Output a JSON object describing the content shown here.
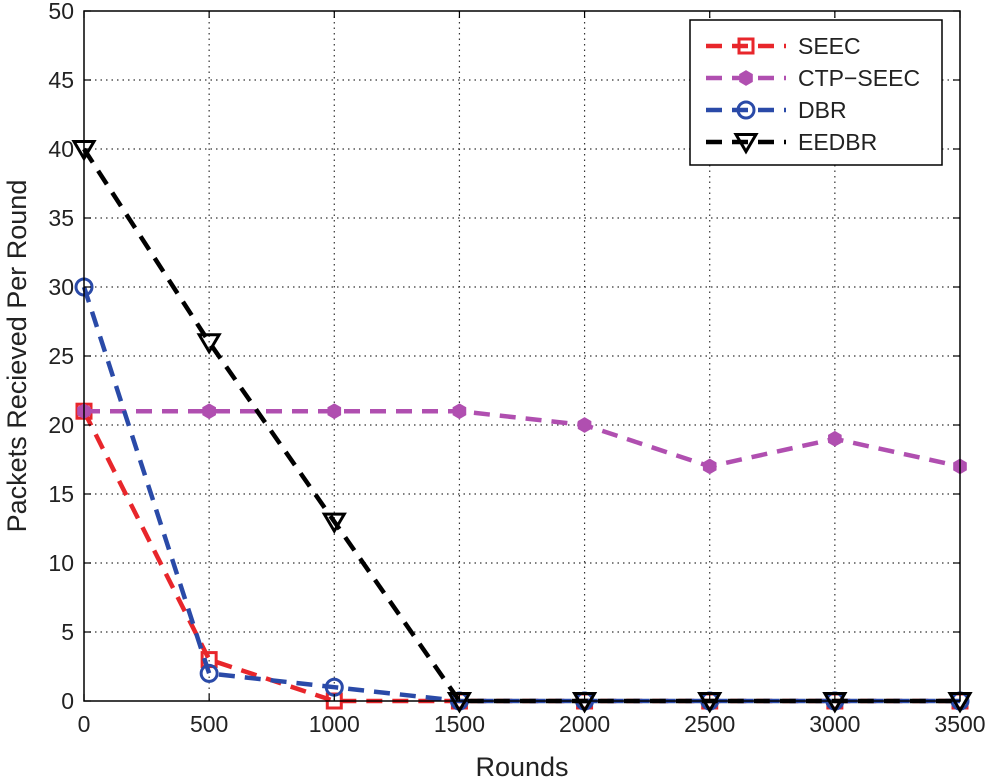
{
  "chart_data": {
    "type": "line",
    "xlabel": "Rounds",
    "ylabel": "Packets Recieved Per Round",
    "xlim": [
      0,
      3500
    ],
    "ylim": [
      0,
      50
    ],
    "xticks": [
      0,
      500,
      1000,
      1500,
      2000,
      2500,
      3000,
      3500
    ],
    "yticks": [
      0,
      5,
      10,
      15,
      20,
      25,
      30,
      35,
      40,
      45,
      50
    ],
    "grid": true,
    "legend_position": "top-right",
    "x": [
      0,
      500,
      1000,
      1500,
      2000,
      2500,
      3000,
      3500
    ],
    "series": [
      {
        "name": "SEEC",
        "color": "#e8262b",
        "marker": "square",
        "values": [
          21,
          3,
          0,
          0,
          0,
          0,
          0,
          0
        ]
      },
      {
        "name": "CTP−SEEC",
        "color": "#b04fb0",
        "marker": "hexagon-filled",
        "values": [
          21,
          21,
          21,
          21,
          20,
          17,
          19,
          17
        ]
      },
      {
        "name": "DBR",
        "color": "#2a4aa8",
        "marker": "circle-open",
        "values": [
          30,
          2,
          1,
          0,
          0,
          0,
          0,
          0
        ]
      },
      {
        "name": "EEDBR",
        "color": "#000000",
        "marker": "triangle-down-open",
        "values": [
          40,
          26,
          13,
          0,
          0,
          0,
          0,
          0
        ]
      }
    ]
  }
}
